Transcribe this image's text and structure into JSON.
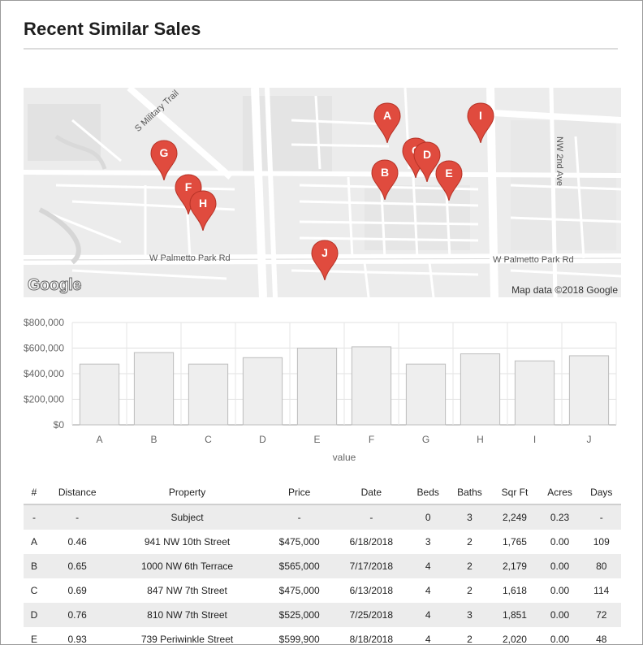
{
  "header": {
    "title": "Recent Similar Sales"
  },
  "map": {
    "road_labels": {
      "military": "S Military Trail",
      "palmetto_west": "W Palmetto Park Rd",
      "palmetto_east": "W Palmetto Park Rd",
      "nw2nd": "NW 2nd Ave"
    },
    "logo": "Google",
    "attribution": "Map data ©2018 Google",
    "marker_color": "#e04b3e",
    "markers": [
      "A",
      "B",
      "C",
      "D",
      "E",
      "F",
      "G",
      "H",
      "I",
      "J"
    ]
  },
  "chart_data": {
    "type": "bar",
    "categories": [
      "A",
      "B",
      "C",
      "D",
      "E",
      "F",
      "G",
      "H",
      "I",
      "J"
    ],
    "values": [
      475000,
      565000,
      475000,
      525000,
      599900,
      610000,
      475000,
      555000,
      500000,
      540000
    ],
    "xlabel": "value",
    "ylabel": "",
    "ylim": [
      0,
      800000
    ],
    "yticks": [
      "$0",
      "$200,000",
      "$400,000",
      "$600,000",
      "$800,000"
    ],
    "grid": true,
    "bar_color": "#eeeeee",
    "bar_stroke": "#bdbdbd"
  },
  "table": {
    "headers": [
      "#",
      "Distance",
      "Property",
      "Price",
      "Date",
      "Beds",
      "Baths",
      "Sqr Ft",
      "Acres",
      "Days"
    ],
    "rows": [
      [
        "-",
        "-",
        "Subject",
        "-",
        "-",
        "0",
        "3",
        "2,249",
        "0.23",
        "-"
      ],
      [
        "A",
        "0.46",
        "941 NW 10th Street",
        "$475,000",
        "6/18/2018",
        "3",
        "2",
        "1,765",
        "0.00",
        "109"
      ],
      [
        "B",
        "0.65",
        "1000 NW 6th Terrace",
        "$565,000",
        "7/17/2018",
        "4",
        "2",
        "2,179",
        "0.00",
        "80"
      ],
      [
        "C",
        "0.69",
        "847 NW 7th Street",
        "$475,000",
        "6/13/2018",
        "4",
        "2",
        "1,618",
        "0.00",
        "114"
      ],
      [
        "D",
        "0.76",
        "810 NW 7th Street",
        "$525,000",
        "7/25/2018",
        "4",
        "3",
        "1,851",
        "0.00",
        "72"
      ],
      [
        "E",
        "0.93",
        "739 Periwinkle Street",
        "$599,900",
        "8/18/2018",
        "4",
        "2",
        "2,020",
        "0.00",
        "48"
      ]
    ]
  }
}
